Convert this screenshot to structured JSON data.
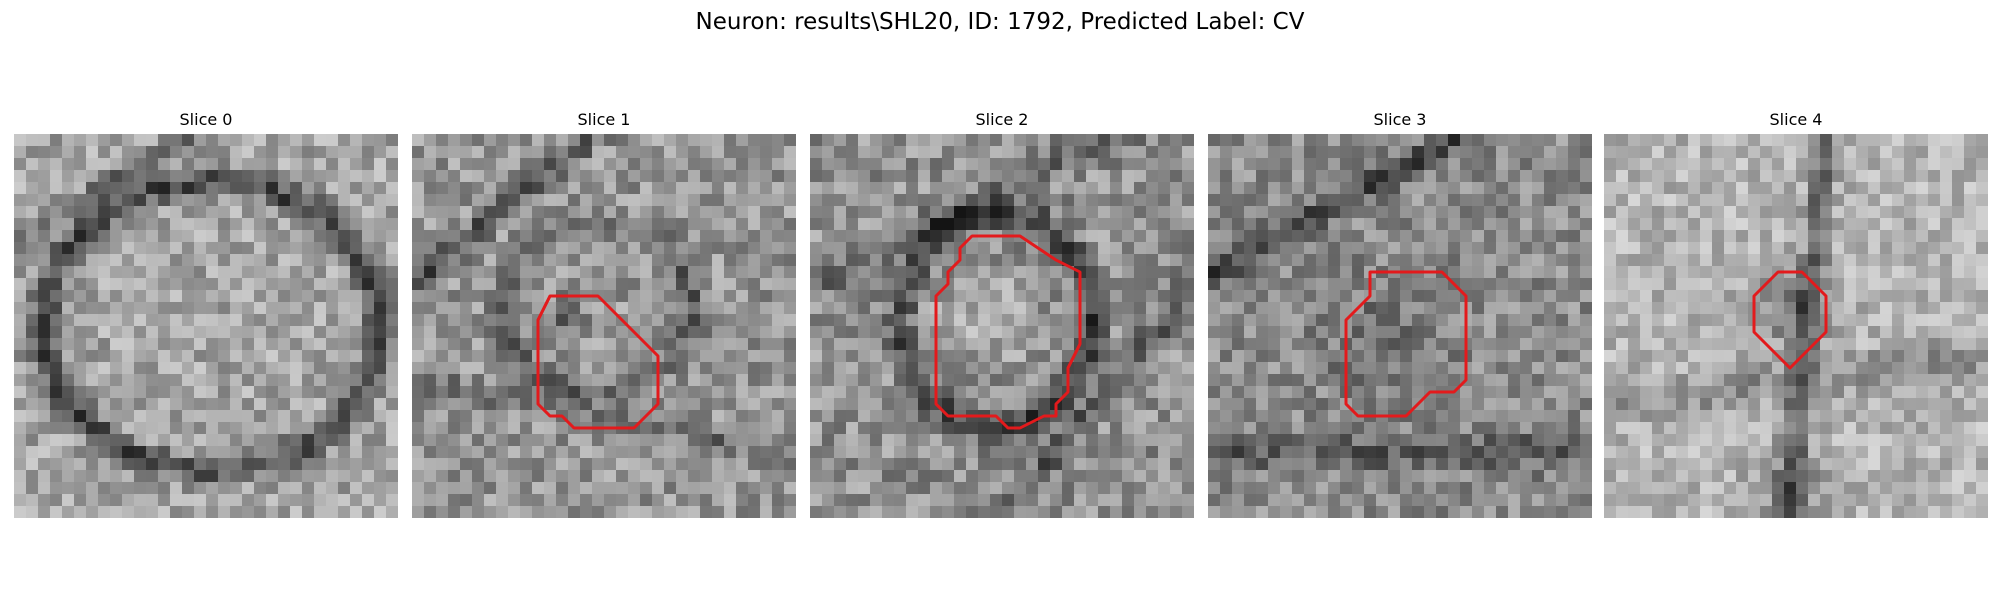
{
  "figure": {
    "title": "Neuron: results\\SHL20, ID: 1792, Predicted Label: CV"
  },
  "colors": {
    "outline": "#e31a1c",
    "background": "#ffffff"
  },
  "panels": [
    {
      "title": "Slice 0"
    },
    {
      "title": "Slice 1"
    },
    {
      "title": "Slice 2"
    },
    {
      "title": "Slice 3"
    },
    {
      "title": "Slice 4"
    }
  ]
}
